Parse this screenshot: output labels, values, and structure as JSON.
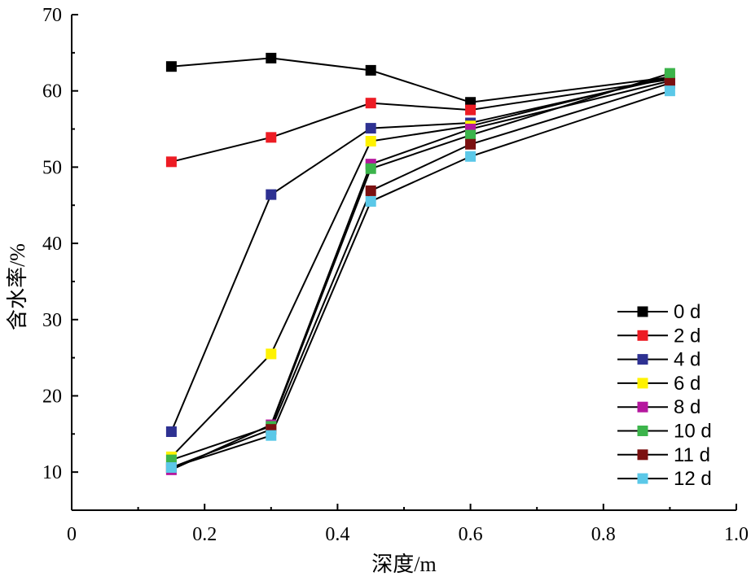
{
  "chart_data": {
    "type": "line",
    "title": "",
    "xlabel": "深度/m",
    "ylabel": "含水率/%",
    "xlim": [
      0,
      1.0
    ],
    "ylim": [
      5,
      70
    ],
    "x_ticks": [
      0,
      0.2,
      0.4,
      0.6,
      0.8,
      1.0
    ],
    "x_tick_labels": [
      "0",
      "0.2",
      "0.4",
      "0.6",
      "0.8",
      "1.0"
    ],
    "y_ticks": [
      10,
      20,
      30,
      40,
      50,
      60,
      70
    ],
    "y_tick_labels": [
      "10",
      "20",
      "30",
      "40",
      "50",
      "60",
      "70"
    ],
    "grid": false,
    "legend_position": "bottom-right",
    "line_color": "#000000",
    "x": [
      0.15,
      0.3,
      0.45,
      0.6,
      0.9
    ],
    "series": [
      {
        "name": "0 d",
        "color": "#000000",
        "values": [
          63.2,
          64.3,
          62.7,
          58.5,
          61.8
        ]
      },
      {
        "name": "2 d",
        "color": "#ed1c24",
        "values": [
          50.7,
          53.9,
          58.4,
          57.5,
          61.5
        ]
      },
      {
        "name": "4 d",
        "color": "#2e3192",
        "values": [
          15.3,
          46.4,
          55.1,
          55.8,
          61.7
        ]
      },
      {
        "name": "6 d",
        "color": "#fff200",
        "values": [
          12.0,
          25.5,
          53.4,
          55.4,
          61.9
        ]
      },
      {
        "name": "8 d",
        "color": "#b5179e",
        "values": [
          10.3,
          16.2,
          50.4,
          55.0,
          61.3
        ]
      },
      {
        "name": "10 d",
        "color": "#3cb44b",
        "values": [
          11.6,
          16.0,
          49.8,
          54.2,
          62.3
        ]
      },
      {
        "name": "11 d",
        "color": "#7b1010",
        "values": [
          10.6,
          15.6,
          46.9,
          53.0,
          61.0
        ]
      },
      {
        "name": "12 d",
        "color": "#5bc8e8",
        "values": [
          10.6,
          14.8,
          45.5,
          51.4,
          60.0
        ]
      }
    ]
  }
}
